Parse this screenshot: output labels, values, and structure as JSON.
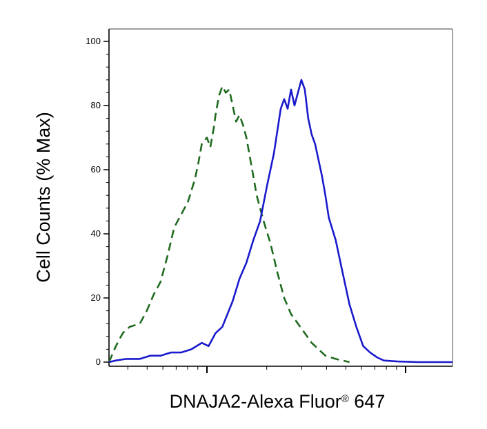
{
  "chart_data": {
    "type": "line",
    "xlabel": "DNAJA2-Alexa Fluor",
    "xlabel_sup": "®",
    "xlabel_suffix": " 647",
    "ylabel": "Cell Counts (% Max)",
    "ylim": [
      0,
      100
    ],
    "y_ticks": [
      "0",
      "20",
      "40",
      "60",
      "80",
      "100"
    ],
    "x_scale": "log",
    "x_ticks_note": "log decades, no printed labels",
    "grid": false,
    "legend": "none",
    "series": [
      {
        "style": "dashed",
        "color": "#1f6b1f",
        "points": [
          [
            0.0,
            0
          ],
          [
            0.02,
            5
          ],
          [
            0.04,
            9
          ],
          [
            0.06,
            11
          ],
          [
            0.09,
            12
          ],
          [
            0.11,
            16
          ],
          [
            0.13,
            21
          ],
          [
            0.15,
            25
          ],
          [
            0.17,
            33
          ],
          [
            0.19,
            42
          ],
          [
            0.21,
            46
          ],
          [
            0.23,
            50
          ],
          [
            0.25,
            57
          ],
          [
            0.26,
            62
          ],
          [
            0.27,
            68
          ],
          [
            0.285,
            70
          ],
          [
            0.295,
            67
          ],
          [
            0.305,
            73
          ],
          [
            0.31,
            77
          ],
          [
            0.32,
            83
          ],
          [
            0.33,
            86
          ],
          [
            0.34,
            84
          ],
          [
            0.35,
            85
          ],
          [
            0.36,
            80
          ],
          [
            0.37,
            75
          ],
          [
            0.38,
            77
          ],
          [
            0.39,
            74
          ],
          [
            0.4,
            70
          ],
          [
            0.41,
            64
          ],
          [
            0.42,
            58
          ],
          [
            0.43,
            52
          ],
          [
            0.45,
            44
          ],
          [
            0.47,
            37
          ],
          [
            0.49,
            28
          ],
          [
            0.51,
            20
          ],
          [
            0.53,
            15
          ],
          [
            0.55,
            12
          ],
          [
            0.57,
            9
          ],
          [
            0.59,
            6
          ],
          [
            0.61,
            4
          ],
          [
            0.63,
            2
          ],
          [
            0.66,
            1
          ],
          [
            0.7,
            0
          ]
        ]
      },
      {
        "style": "solid",
        "color": "#1a1acc",
        "points": [
          [
            0.0,
            0
          ],
          [
            0.02,
            0.5
          ],
          [
            0.05,
            1
          ],
          [
            0.09,
            1
          ],
          [
            0.12,
            2
          ],
          [
            0.15,
            2
          ],
          [
            0.18,
            3
          ],
          [
            0.21,
            3
          ],
          [
            0.24,
            4
          ],
          [
            0.27,
            6
          ],
          [
            0.29,
            5
          ],
          [
            0.31,
            9
          ],
          [
            0.33,
            11
          ],
          [
            0.36,
            19
          ],
          [
            0.38,
            26
          ],
          [
            0.4,
            31
          ],
          [
            0.42,
            38
          ],
          [
            0.44,
            44
          ],
          [
            0.46,
            55
          ],
          [
            0.48,
            65
          ],
          [
            0.49,
            72
          ],
          [
            0.5,
            79
          ],
          [
            0.51,
            82
          ],
          [
            0.52,
            79
          ],
          [
            0.53,
            85
          ],
          [
            0.54,
            80
          ],
          [
            0.55,
            84
          ],
          [
            0.56,
            88
          ],
          [
            0.57,
            85
          ],
          [
            0.58,
            76
          ],
          [
            0.59,
            71
          ],
          [
            0.6,
            68
          ],
          [
            0.61,
            63
          ],
          [
            0.62,
            58
          ],
          [
            0.63,
            52
          ],
          [
            0.64,
            45
          ],
          [
            0.66,
            38
          ],
          [
            0.68,
            28
          ],
          [
            0.7,
            18
          ],
          [
            0.72,
            11
          ],
          [
            0.74,
            5
          ],
          [
            0.76,
            3
          ],
          [
            0.78,
            1.5
          ],
          [
            0.8,
            0.5
          ],
          [
            0.84,
            0.2
          ],
          [
            0.9,
            0
          ],
          [
            1.0,
            0
          ]
        ]
      }
    ]
  }
}
